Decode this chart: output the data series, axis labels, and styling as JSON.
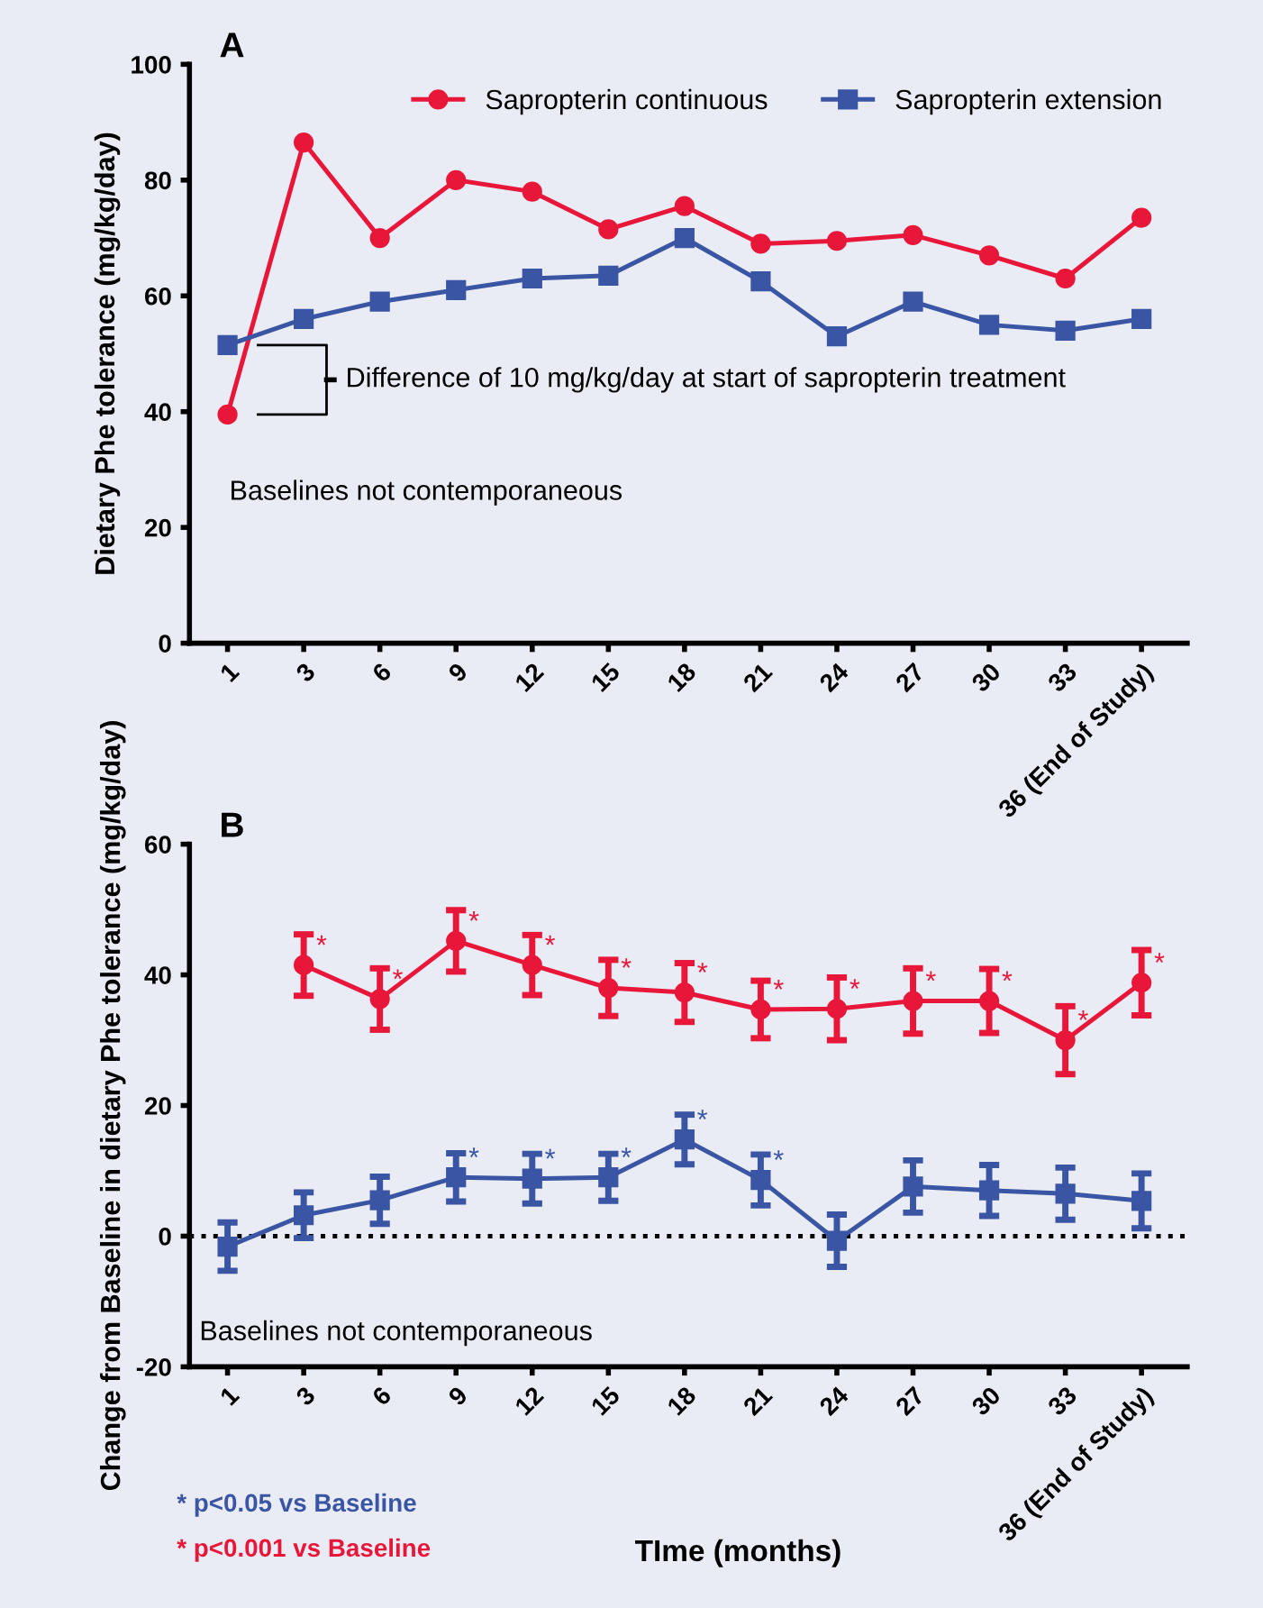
{
  "chart_data": [
    {
      "type": "line",
      "title": "A",
      "ylabel": "Dietary Phe tolerance (mg/kg/day)",
      "categories": [
        "1",
        "3",
        "6",
        "9",
        "12",
        "15",
        "18",
        "21",
        "24",
        "27",
        "30",
        "33",
        "36 (End of Study)"
      ],
      "ylim": [
        0,
        100
      ],
      "yticks": [
        0,
        20,
        40,
        60,
        80,
        100
      ],
      "grid": false,
      "legend": "top right",
      "line_style": "solid",
      "series": [
        {
          "name": "Sapropterin continuous",
          "color": "#e8173a",
          "marker": "circle",
          "values": [
            39.5,
            86.5,
            70,
            80,
            78,
            71.5,
            75.5,
            69,
            69.5,
            70.5,
            67,
            63,
            73.5
          ]
        },
        {
          "name": "Sapropterin extension",
          "color": "#3a55a4",
          "marker": "square",
          "values": [
            51.5,
            56,
            59,
            61,
            63,
            63.5,
            70,
            62.5,
            53,
            59,
            55,
            54,
            56
          ]
        }
      ],
      "annotations": [
        "Difference of 10 mg/kg/day at start of sapropterin treatment",
        "Baselines not contemporaneous"
      ]
    },
    {
      "type": "line",
      "title": "B",
      "xlabel": "TIme (months)",
      "ylabel": "Change from Baseline in dietary Phe tolerance (mg/kg/day)",
      "categories": [
        "1",
        "3",
        "6",
        "9",
        "12",
        "15",
        "18",
        "21",
        "24",
        "27",
        "30",
        "33",
        "36 (End of Study)"
      ],
      "ylim": [
        -20,
        60
      ],
      "yticks": [
        -20,
        0,
        20,
        40,
        60
      ],
      "grid": false,
      "line_style": "solid",
      "ref_lines": [
        {
          "axis": "y",
          "value": 0,
          "color": "#000000",
          "line_style": "dotted"
        }
      ],
      "series": [
        {
          "color": "#e8173a",
          "marker": "circle",
          "values": [
            null,
            41.5,
            36.3,
            45.2,
            41.5,
            38,
            37.3,
            34.7,
            34.8,
            36,
            36,
            30,
            38.8
          ],
          "errors": [
            null,
            4.7,
            4.7,
            4.7,
            4.6,
            4.3,
            4.5,
            4.4,
            4.8,
            5,
            4.9,
            5.2,
            5
          ],
          "value_labels": [
            null,
            "*",
            "*",
            "*",
            "*",
            "*",
            "*",
            "*",
            "*",
            "*",
            "*",
            "*",
            "*"
          ]
        },
        {
          "color": "#3a55a4",
          "marker": "square",
          "values": [
            -1.6,
            3.2,
            5.5,
            9,
            8.8,
            9,
            14.8,
            8.6,
            -0.7,
            7.6,
            7,
            6.5,
            5.4
          ],
          "errors": [
            3.7,
            3.5,
            3.6,
            3.7,
            3.8,
            3.6,
            3.8,
            3.9,
            4,
            4,
            3.9,
            4,
            4.2
          ],
          "value_labels": [
            null,
            null,
            null,
            "*",
            "*",
            "*",
            "*",
            "*",
            null,
            null,
            null,
            null,
            null
          ]
        }
      ],
      "annotations": [
        "Baselines not contemporaneous",
        "* p<0.05 vs Baseline",
        "* p<0.001 vs Baseline"
      ]
    }
  ]
}
